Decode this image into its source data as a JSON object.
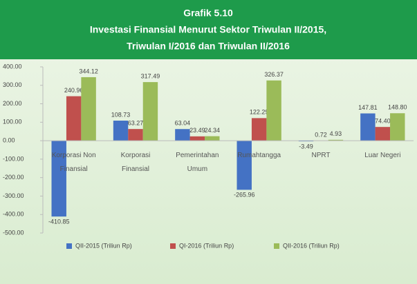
{
  "chart_data": {
    "type": "bar",
    "title": "Grafik 5.10",
    "subtitle": [
      "Investasi Finansial Menurut Sektor Triwulan II/2015,",
      "Triwulan I/2016 dan Triwulan II/2016"
    ],
    "categories": [
      "Korporasi Non Finansial",
      "Korporasi Finansial",
      "Pemerintahan Umum",
      "Rumahtangga",
      "NPRT",
      "Luar Negeri"
    ],
    "series": [
      {
        "name": "QII-2015 (Triliun Rp)",
        "color": "#4472c4",
        "values": [
          -410.85,
          108.73,
          63.04,
          -265.96,
          -3.49,
          147.81
        ],
        "value_labels": [
          "-410.85",
          "108.73",
          "63.04",
          "-265.96",
          "-3.49",
          "147.81"
        ]
      },
      {
        "name": "QI-2016 (Triliun Rp)",
        "color": "#c0504d",
        "values": [
          240.96,
          63.27,
          23.49,
          122.29,
          0.72,
          74.4
        ],
        "value_labels": [
          "240.96",
          "63.27",
          "23.49",
          "122.29",
          "0.72",
          "74.40"
        ]
      },
      {
        "name": "QII-2016 (Triliun Rp)",
        "color": "#9bbb59",
        "values": [
          344.12,
          317.49,
          24.34,
          326.37,
          4.93,
          148.8
        ],
        "value_labels": [
          "344.12",
          "317.49",
          "24.34",
          "326.37",
          "4.93",
          "148.80"
        ]
      }
    ],
    "ylim": [
      -500,
      400
    ],
    "yticks": [
      {
        "value": 400,
        "label": "400.00"
      },
      {
        "value": 300,
        "label": "300.00"
      },
      {
        "value": 200,
        "label": "200.00"
      },
      {
        "value": 100,
        "label": "100.00"
      },
      {
        "value": 0,
        "label": "0.00"
      },
      {
        "value": -100,
        "label": "-100.00"
      },
      {
        "value": -200,
        "label": "-200.00"
      },
      {
        "value": -300,
        "label": "-300.00"
      },
      {
        "value": -400,
        "label": "-400.00"
      },
      {
        "value": -500,
        "label": "-500.00"
      }
    ],
    "legend": "bottom"
  }
}
